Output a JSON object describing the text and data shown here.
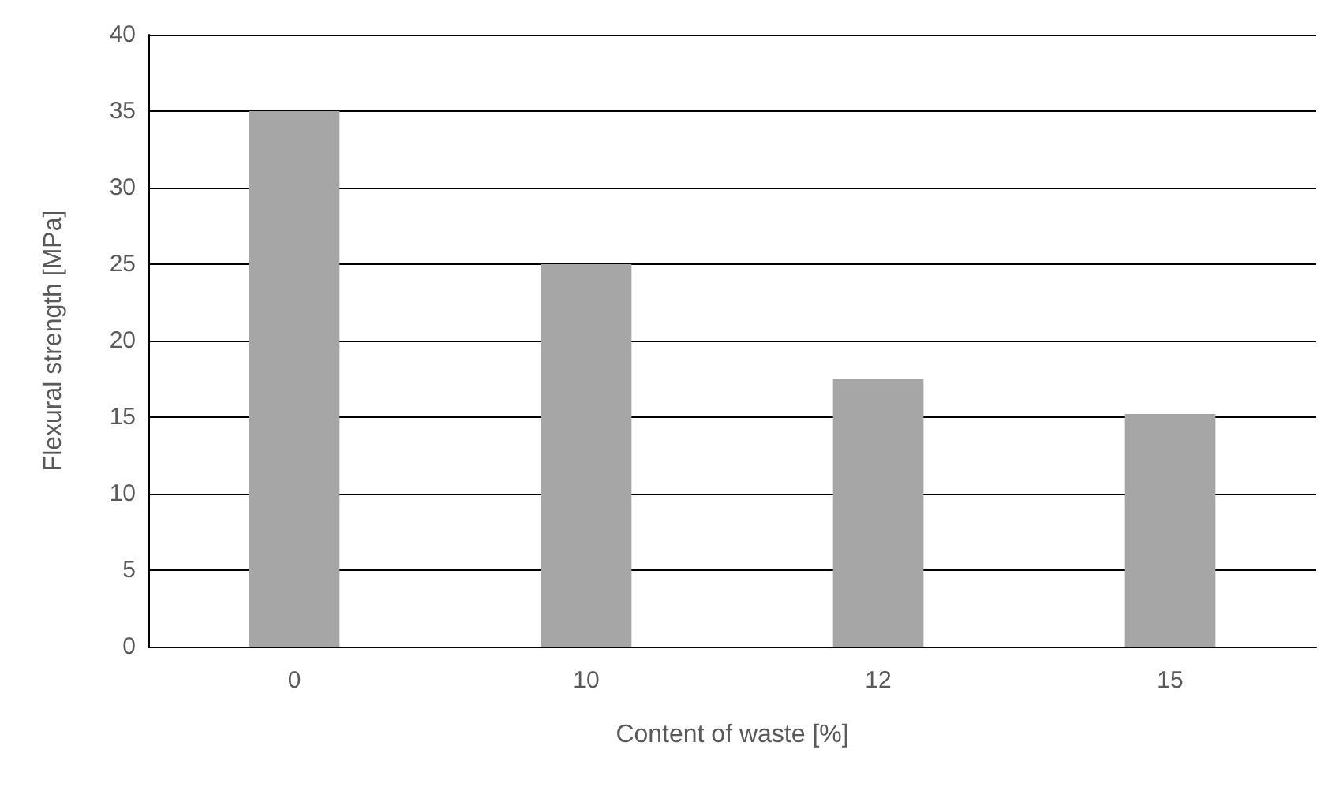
{
  "chart_data": {
    "type": "bar",
    "xlabel": "Content of waste [%]",
    "ylabel": "Flexural strength [MPa]",
    "categories": [
      "0",
      "10",
      "12",
      "15"
    ],
    "values": [
      35,
      25,
      17.5,
      15.2
    ],
    "color": "#a6a6a6",
    "ylim": [
      0,
      40
    ],
    "yticks": [
      0,
      5,
      10,
      15,
      20,
      25,
      30,
      35,
      40
    ],
    "grid": "y"
  }
}
